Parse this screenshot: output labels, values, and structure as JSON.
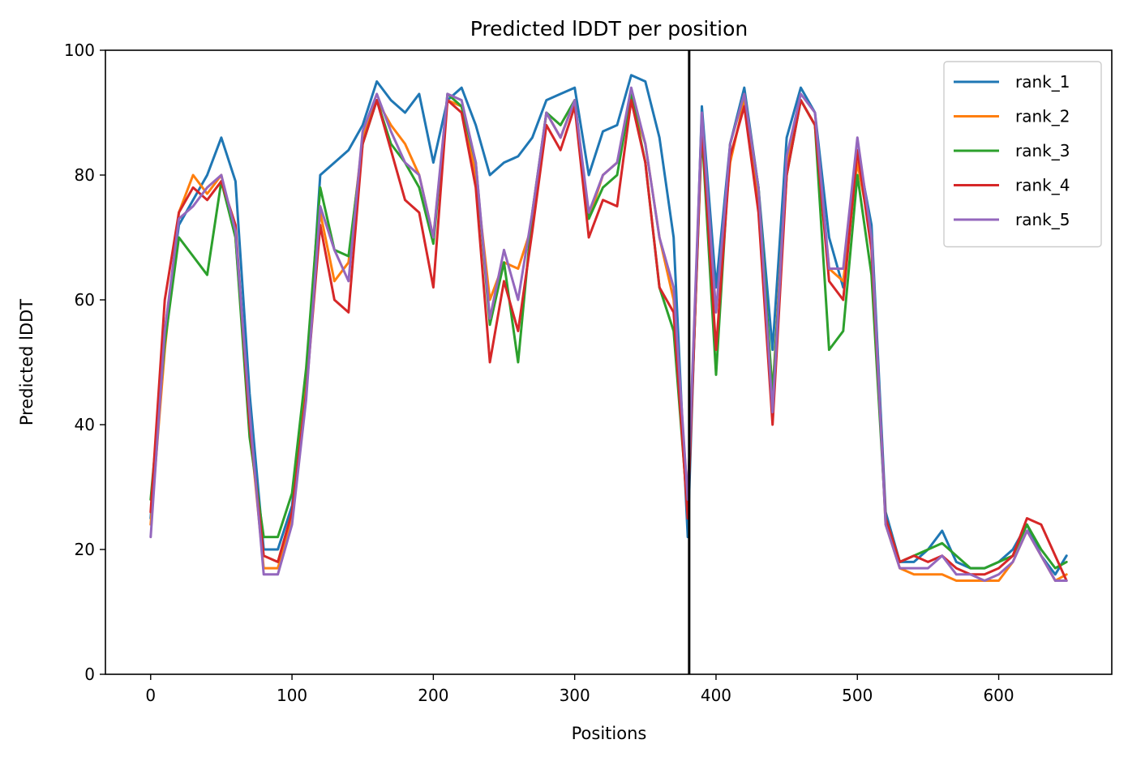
{
  "chart_data": {
    "type": "line",
    "title": "Predicted lDDT per position",
    "xlabel": "Positions",
    "ylabel": "Predicted lDDT",
    "xlim": [
      -32,
      680
    ],
    "ylim": [
      0,
      100
    ],
    "xticks": [
      0,
      100,
      200,
      300,
      400,
      500,
      600
    ],
    "yticks": [
      0,
      20,
      40,
      60,
      80,
      100
    ],
    "grid": false,
    "legend": "top-right",
    "vline": 381,
    "vline_color": "#000000",
    "x": [
      0,
      10,
      20,
      30,
      40,
      50,
      60,
      70,
      80,
      90,
      100,
      110,
      120,
      130,
      140,
      150,
      160,
      170,
      180,
      190,
      200,
      210,
      220,
      230,
      240,
      250,
      260,
      270,
      280,
      290,
      300,
      310,
      320,
      330,
      340,
      350,
      360,
      370,
      380,
      390,
      400,
      410,
      420,
      430,
      440,
      450,
      460,
      470,
      480,
      490,
      500,
      510,
      520,
      530,
      540,
      550,
      560,
      570,
      580,
      590,
      600,
      610,
      620,
      630,
      640,
      648
    ],
    "series": [
      {
        "name": "rank_1",
        "color": "#1f77b4",
        "values": [
          25,
          55,
          72,
          76,
          80,
          86,
          79,
          45,
          20,
          20,
          27,
          45,
          80,
          82,
          84,
          88,
          95,
          92,
          90,
          93,
          82,
          92,
          94,
          88,
          80,
          82,
          83,
          86,
          92,
          93,
          94,
          80,
          87,
          88,
          96,
          95,
          86,
          70,
          22,
          91,
          62,
          85,
          94,
          78,
          52,
          86,
          94,
          90,
          70,
          62,
          84,
          72,
          26,
          18,
          18,
          20,
          23,
          18,
          17,
          17,
          18,
          20,
          24,
          19,
          16,
          19
        ]
      },
      {
        "name": "rank_2",
        "color": "#ff7f0e",
        "values": [
          24,
          52,
          74,
          80,
          77,
          80,
          70,
          40,
          17,
          17,
          25,
          48,
          74,
          63,
          66,
          86,
          92,
          88,
          85,
          80,
          70,
          92,
          91,
          80,
          60,
          66,
          65,
          72,
          90,
          86,
          92,
          73,
          80,
          82,
          92,
          85,
          70,
          60,
          28,
          88,
          58,
          82,
          92,
          75,
          45,
          82,
          92,
          88,
          65,
          63,
          82,
          70,
          24,
          17,
          16,
          16,
          16,
          15,
          15,
          15,
          15,
          18,
          23,
          19,
          15,
          16
        ]
      },
      {
        "name": "rank_3",
        "color": "#2ca02c",
        "values": [
          28,
          53,
          70,
          67,
          64,
          79,
          70,
          38,
          22,
          22,
          29,
          49,
          78,
          68,
          67,
          85,
          92,
          85,
          82,
          78,
          69,
          93,
          91,
          82,
          56,
          66,
          50,
          74,
          90,
          88,
          92,
          73,
          78,
          80,
          93,
          82,
          62,
          55,
          26,
          87,
          48,
          85,
          93,
          78,
          45,
          80,
          92,
          88,
          52,
          55,
          80,
          64,
          25,
          18,
          19,
          20,
          21,
          19,
          17,
          17,
          18,
          19,
          24,
          20,
          17,
          18
        ]
      },
      {
        "name": "rank_4",
        "color": "#d62728",
        "values": [
          26,
          60,
          74,
          78,
          76,
          79,
          72,
          40,
          19,
          18,
          26,
          45,
          72,
          60,
          58,
          85,
          92,
          84,
          76,
          74,
          62,
          92,
          90,
          78,
          50,
          63,
          55,
          71,
          88,
          84,
          91,
          70,
          76,
          75,
          92,
          82,
          62,
          58,
          25,
          88,
          52,
          83,
          91,
          74,
          40,
          80,
          92,
          88,
          63,
          60,
          84,
          68,
          25,
          18,
          19,
          18,
          19,
          17,
          16,
          16,
          17,
          19,
          25,
          24,
          19,
          15
        ]
      },
      {
        "name": "rank_5",
        "color": "#9467bd",
        "values": [
          22,
          55,
          73,
          75,
          78,
          80,
          71,
          42,
          16,
          16,
          24,
          44,
          75,
          68,
          63,
          87,
          93,
          87,
          82,
          80,
          70,
          93,
          92,
          82,
          57,
          68,
          60,
          74,
          90,
          86,
          92,
          74,
          80,
          82,
          94,
          85,
          70,
          62,
          28,
          90,
          58,
          85,
          93,
          78,
          42,
          83,
          93,
          90,
          65,
          65,
          86,
          70,
          24,
          17,
          17,
          17,
          19,
          16,
          16,
          15,
          16,
          18,
          23,
          19,
          15,
          15
        ]
      }
    ]
  }
}
